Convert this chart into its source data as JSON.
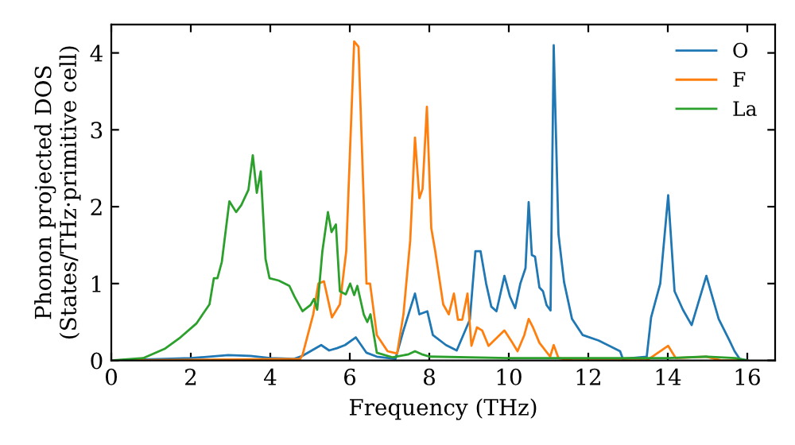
{
  "chart_data": {
    "type": "line",
    "xlabel": "Frequency (THz)",
    "ylabel": "Phonon projected DOS\n(States/THz·primitive cell)",
    "xlim": [
      0,
      16.7
    ],
    "ylim": [
      0,
      4.37
    ],
    "xticks": [
      0,
      2,
      4,
      6,
      8,
      10,
      12,
      14,
      16
    ],
    "yticks": [
      0,
      1,
      2,
      3,
      4
    ],
    "grid": false,
    "legend": "top right",
    "marker": "none",
    "line_style": "solid",
    "series": [
      {
        "name": "O",
        "color": "#1f77b4",
        "x": [
          0,
          2,
          2.94,
          3.5,
          4,
          4.6,
          4.81,
          5.28,
          5.48,
          5.68,
          5.88,
          6.15,
          6.42,
          6.68,
          7.15,
          7.35,
          7.64,
          7.75,
          7.95,
          8.09,
          8.42,
          8.69,
          9.02,
          9.16,
          9.29,
          9.43,
          9.56,
          9.69,
          9.89,
          10.03,
          10.16,
          10.29,
          10.42,
          10.5,
          10.58,
          10.66,
          10.77,
          10.86,
          10.95,
          11.05,
          11.13,
          11.25,
          11.39,
          11.59,
          11.86,
          12.26,
          12.8,
          12.87,
          13.47,
          13.58,
          13.81,
          14.01,
          14.17,
          14.38,
          14.6,
          14.97,
          15.28,
          15.55,
          15.68,
          15.81,
          16
        ],
        "values": [
          0,
          0.03,
          0.07,
          0.06,
          0.03,
          0.02,
          0.06,
          0.2,
          0.13,
          0.16,
          0.2,
          0.3,
          0.1,
          0.05,
          0.02,
          0.39,
          0.87,
          0.6,
          0.64,
          0.33,
          0.2,
          0.13,
          0.53,
          1.42,
          1.42,
          1.0,
          0.7,
          0.64,
          1.1,
          0.83,
          0.68,
          1.0,
          1.2,
          2.06,
          1.37,
          1.35,
          0.95,
          0.9,
          0.72,
          0.65,
          4.1,
          1.64,
          1.02,
          0.54,
          0.33,
          0.26,
          0.12,
          0.02,
          0.05,
          0.56,
          1.0,
          2.15,
          0.9,
          0.66,
          0.46,
          1.1,
          0.54,
          0.26,
          0.12,
          0.02,
          0
        ]
      },
      {
        "name": "F",
        "color": "#ff7f0e",
        "x": [
          0,
          4.75,
          4.81,
          5.08,
          5.21,
          5.35,
          5.55,
          5.75,
          5.91,
          6.11,
          6.22,
          6.42,
          6.51,
          6.68,
          6.95,
          7.19,
          7.35,
          7.52,
          7.64,
          7.75,
          7.83,
          7.94,
          8.05,
          8.15,
          8.35,
          8.49,
          8.62,
          8.72,
          8.83,
          8.96,
          9.06,
          9.2,
          9.33,
          9.49,
          9.69,
          9.89,
          10.09,
          10.22,
          10.39,
          10.5,
          10.6,
          10.77,
          11.04,
          11.13,
          11.25,
          11.6,
          13.47,
          14.01,
          14.2,
          14.95,
          15.35,
          16
        ],
        "values": [
          0,
          0.02,
          0.07,
          0.6,
          1.0,
          1.03,
          0.56,
          0.73,
          1.42,
          4.15,
          4.08,
          1.0,
          1.0,
          0.33,
          0.12,
          0.09,
          0.6,
          1.56,
          2.9,
          2.11,
          2.23,
          3.3,
          1.72,
          1.42,
          0.73,
          0.6,
          0.87,
          0.53,
          0.53,
          0.87,
          0.19,
          0.43,
          0.39,
          0.19,
          0.29,
          0.39,
          0.23,
          0.12,
          0.33,
          0.54,
          0.44,
          0.23,
          0.05,
          0.2,
          0.03,
          0,
          0,
          0.19,
          0.03,
          0.05,
          0,
          0
        ]
      },
      {
        "name": "La",
        "color": "#2ca02c",
        "x": [
          0,
          0.8,
          1.34,
          1.74,
          2.14,
          2.47,
          2.58,
          2.67,
          2.78,
          2.97,
          3.14,
          3.27,
          3.45,
          3.56,
          3.66,
          3.76,
          3.88,
          3.98,
          4.21,
          4.48,
          4.61,
          4.81,
          5.01,
          5.1,
          5.18,
          5.31,
          5.45,
          5.54,
          5.65,
          5.75,
          5.9,
          6.01,
          6.11,
          6.19,
          6.35,
          6.44,
          6.52,
          6.68,
          7.08,
          7.48,
          7.64,
          7.81,
          8.01,
          10,
          14,
          15,
          15.7,
          16
        ],
        "values": [
          0,
          0.03,
          0.15,
          0.3,
          0.48,
          0.73,
          1.07,
          1.07,
          1.28,
          2.07,
          1.93,
          2.02,
          2.22,
          2.67,
          2.18,
          2.46,
          1.32,
          1.07,
          1.04,
          0.97,
          0.83,
          0.64,
          0.72,
          0.8,
          0.66,
          1.42,
          1.93,
          1.67,
          1.77,
          0.9,
          0.86,
          1.0,
          0.85,
          0.97,
          0.6,
          0.5,
          0.6,
          0.1,
          0.04,
          0.08,
          0.12,
          0.08,
          0.05,
          0.03,
          0.03,
          0.05,
          0.03,
          0
        ]
      }
    ]
  }
}
